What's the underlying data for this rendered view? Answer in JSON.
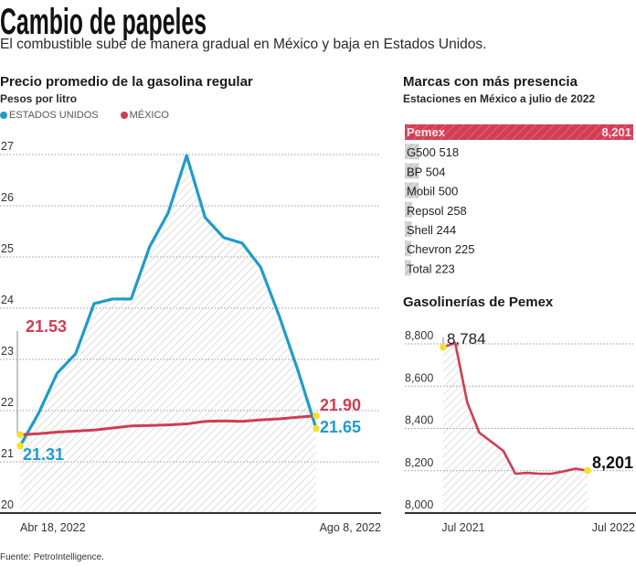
{
  "header": {
    "title": "Cambio de papeles",
    "subtitle": "El combustible sube de manera gradual en México y baja en Estados Unidos."
  },
  "left_panel": {
    "title": "Precio promedio de la gasolina regular",
    "subtitle": "Pesos por litro",
    "legend": [
      {
        "label": "ESTADOS UNIDOS",
        "color": "#1f9cc8"
      },
      {
        "label": "MÉXICO",
        "color": "#cf3d52"
      }
    ]
  },
  "right_panel": {
    "title": "Marcas con más presencia",
    "subtitle": "Estaciones en México a julio de 2022",
    "chart2_title": "Gasolinerías de Pemex"
  },
  "footer": {
    "source": "Fuente: PetroIntelligence."
  },
  "colors": {
    "us": "#1f9cc8",
    "mexico": "#cf3d52",
    "highlight_dot": "#f3e12b",
    "hatch": "#c4c4c4",
    "axis": "#333333"
  },
  "chart_data": [
    {
      "type": "line",
      "title": "Precio promedio de la gasolina regular",
      "ylabel": "Pesos por litro",
      "xlabel": "",
      "x": [
        "2022-04-18",
        "2022-04-25",
        "2022-05-02",
        "2022-05-09",
        "2022-05-16",
        "2022-05-23",
        "2022-05-30",
        "2022-06-06",
        "2022-06-13",
        "2022-06-20",
        "2022-06-27",
        "2022-07-04",
        "2022-07-11",
        "2022-07-18",
        "2022-07-25",
        "2022-08-01",
        "2022-08-08"
      ],
      "x_tick_labels": [
        "Abr 18, 2022",
        "Ago 8, 2022"
      ],
      "ylim": [
        20,
        27
      ],
      "y_ticks": [
        "20",
        "21",
        "22",
        "23",
        "24",
        "25",
        "26",
        "27"
      ],
      "grid": true,
      "legend_position": "top-left",
      "series": [
        {
          "name": "ESTADOS UNIDOS",
          "color": "#1f9cc8",
          "area_hatched": true,
          "values": [
            21.31,
            21.95,
            22.73,
            23.11,
            24.09,
            24.18,
            24.18,
            25.2,
            25.86,
            26.98,
            25.77,
            25.38,
            25.27,
            24.8,
            23.85,
            22.8,
            21.65
          ]
        },
        {
          "name": "MÉXICO",
          "color": "#cf3d52",
          "values": [
            21.53,
            21.55,
            21.58,
            21.6,
            21.62,
            21.66,
            21.7,
            21.71,
            21.72,
            21.74,
            21.79,
            21.8,
            21.79,
            21.82,
            21.84,
            21.87,
            21.9
          ]
        }
      ],
      "annotations": [
        {
          "text": "21.53",
          "series": "MÉXICO",
          "point": "start"
        },
        {
          "text": "21.31",
          "series": "ESTADOS UNIDOS",
          "point": "start"
        },
        {
          "text": "21.90",
          "series": "MÉXICO",
          "point": "end"
        },
        {
          "text": "21.65",
          "series": "ESTADOS UNIDOS",
          "point": "end"
        }
      ]
    },
    {
      "type": "bar",
      "orientation": "horizontal",
      "title": "Marcas con más presencia",
      "subtitle": "Estaciones en México a julio de 2022",
      "categories": [
        "Pemex",
        "G500",
        "BP",
        "Mobil",
        "Repsol",
        "Shell",
        "Chevron",
        "Total"
      ],
      "values": [
        8201,
        518,
        504,
        500,
        258,
        244,
        225,
        223
      ],
      "value_labels": [
        "8,201",
        "518",
        "504",
        "500",
        "258",
        "244",
        "225",
        "223"
      ],
      "highlight": "Pemex"
    },
    {
      "type": "line",
      "title": "Gasolinerías de Pemex",
      "x": [
        "2021-07",
        "2021-08",
        "2021-09",
        "2021-10",
        "2021-11",
        "2021-12",
        "2022-01",
        "2022-02",
        "2022-03",
        "2022-04",
        "2022-05",
        "2022-06",
        "2022-07"
      ],
      "x_tick_labels": [
        "Jul 2021",
        "Jul 2022"
      ],
      "ylim": [
        8000,
        8800
      ],
      "y_ticks": [
        "8,000",
        "8,200",
        "8,400",
        "8,600",
        "8,800"
      ],
      "grid": true,
      "series": [
        {
          "name": "Gasolinerías de Pemex",
          "color": "#cf3d52",
          "area_hatched": true,
          "values": [
            8784,
            8804,
            8523,
            8380,
            8337,
            8294,
            8186,
            8190,
            8186,
            8186,
            8197,
            8210,
            8201
          ]
        }
      ],
      "annotations": [
        {
          "text": "8,784",
          "point": "start"
        },
        {
          "text": "8,201",
          "point": "end"
        }
      ]
    }
  ]
}
